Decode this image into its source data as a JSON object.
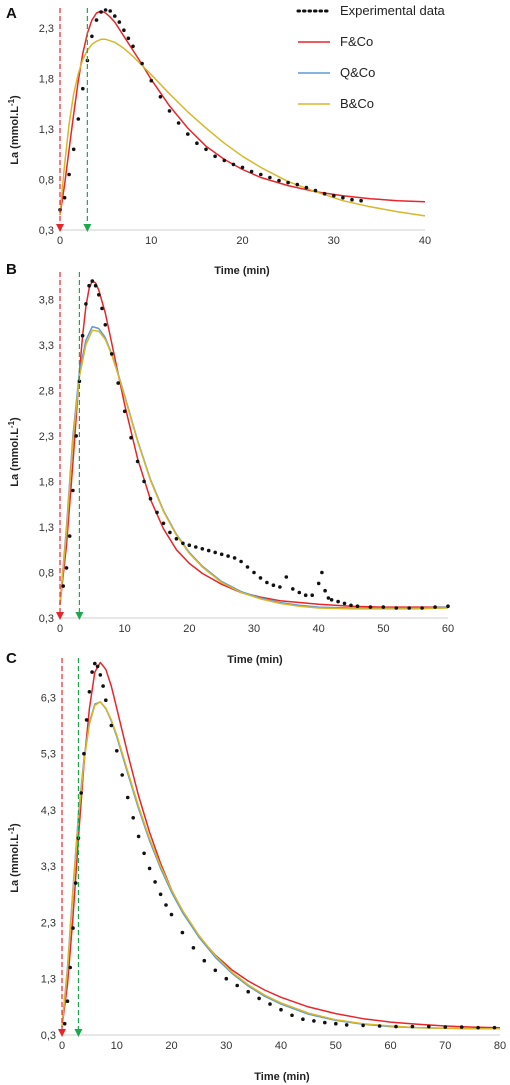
{
  "legend": [
    {
      "label": "Experimental data",
      "color": "#111111",
      "style": "dotted"
    },
    {
      "label": "F&Co",
      "color": "#e8262a",
      "style": "solid"
    },
    {
      "label": "Q&Co",
      "color": "#5b9bd5",
      "style": "solid"
    },
    {
      "label": "B&Co",
      "color": "#d9b62a",
      "style": "solid"
    }
  ],
  "marker_colors": {
    "start": "#e8262a",
    "end": "#1ea84d"
  },
  "chart_data": [
    {
      "type": "line",
      "panel": "A",
      "xlabel": "Time (min)",
      "ylabel": "La (mmol.L-1)",
      "xlim": [
        0,
        40
      ],
      "ylim": [
        0.3,
        2.5
      ],
      "xticks": [
        0,
        10,
        20,
        30,
        40
      ],
      "yticks": [
        0.3,
        0.8,
        1.3,
        1.8,
        2.3
      ],
      "xtick_labels": [
        "0",
        "10",
        "20",
        "30",
        "40"
      ],
      "ytick_labels": [
        "0,3",
        "0,8",
        "1,3",
        "1,8",
        "2,3"
      ],
      "markers": [
        0,
        3
      ],
      "series": [
        {
          "name": "Experimental data",
          "x": [
            0,
            0.5,
            1,
            1.5,
            2,
            2.5,
            3,
            3.5,
            4,
            4.5,
            5,
            5.5,
            6,
            6.5,
            7,
            7.5,
            8,
            9,
            10,
            11,
            12,
            13,
            14,
            15,
            16,
            17,
            18,
            19,
            20,
            21,
            22,
            23,
            24,
            25,
            26,
            27,
            28,
            29,
            30,
            31,
            32,
            33
          ],
          "y": [
            0.5,
            0.62,
            0.85,
            1.1,
            1.4,
            1.7,
            1.98,
            2.22,
            2.38,
            2.46,
            2.48,
            2.47,
            2.42,
            2.36,
            2.28,
            2.2,
            2.12,
            1.95,
            1.78,
            1.62,
            1.48,
            1.36,
            1.25,
            1.16,
            1.1,
            1.03,
            0.99,
            0.95,
            0.92,
            0.88,
            0.85,
            0.82,
            0.79,
            0.77,
            0.75,
            0.72,
            0.69,
            0.66,
            0.64,
            0.62,
            0.6,
            0.59
          ]
        },
        {
          "name": "F&Co",
          "x": [
            0,
            0.5,
            1,
            1.5,
            2,
            2.5,
            3,
            3.5,
            4,
            4.5,
            5,
            5.5,
            6,
            7,
            8,
            9,
            10,
            12,
            14,
            16,
            18,
            20,
            22,
            25,
            28,
            31,
            34,
            37,
            40
          ],
          "y": [
            0.45,
            0.75,
            1.1,
            1.45,
            1.78,
            2.05,
            2.25,
            2.38,
            2.45,
            2.47,
            2.45,
            2.41,
            2.36,
            2.22,
            2.08,
            1.94,
            1.79,
            1.53,
            1.31,
            1.13,
            1.0,
            0.9,
            0.82,
            0.74,
            0.68,
            0.64,
            0.61,
            0.59,
            0.58
          ]
        },
        {
          "name": "B&Co",
          "x": [
            0,
            0.5,
            1,
            1.5,
            2,
            2.5,
            3,
            3.5,
            4,
            4.5,
            5,
            6,
            7,
            8,
            9,
            10,
            12,
            14,
            16,
            18,
            20,
            22,
            25,
            28,
            31,
            34,
            37,
            40
          ],
          "y": [
            0.45,
            0.95,
            1.35,
            1.65,
            1.85,
            1.99,
            2.08,
            2.14,
            2.17,
            2.19,
            2.19,
            2.16,
            2.1,
            2.02,
            1.93,
            1.84,
            1.65,
            1.47,
            1.31,
            1.16,
            1.03,
            0.92,
            0.78,
            0.68,
            0.59,
            0.53,
            0.48,
            0.44
          ]
        }
      ]
    },
    {
      "type": "line",
      "panel": "B",
      "xlabel": "Time (min)",
      "ylabel": "La (mmol.L-1)",
      "xlim": [
        0,
        60
      ],
      "ylim": [
        0.3,
        4.1
      ],
      "xticks": [
        0,
        10,
        20,
        30,
        40,
        50,
        60
      ],
      "yticks": [
        0.3,
        0.8,
        1.3,
        1.8,
        2.3,
        2.8,
        3.3,
        3.8
      ],
      "xtick_labels": [
        "0",
        "10",
        "20",
        "30",
        "40",
        "50",
        "60"
      ],
      "ytick_labels": [
        "0,3",
        "0,8",
        "1,3",
        "1,8",
        "2,3",
        "2,8",
        "3,3",
        "3,8"
      ],
      "markers": [
        0,
        3
      ],
      "series": [
        {
          "name": "Experimental data",
          "x": [
            0.5,
            1,
            1.5,
            2,
            2.5,
            3,
            3.5,
            4,
            4.5,
            5,
            5.5,
            6,
            6.5,
            7,
            8,
            9,
            10,
            11,
            12,
            13,
            14,
            15,
            16,
            17,
            18,
            19,
            20,
            21,
            22,
            23,
            24,
            25,
            26,
            27,
            28,
            29,
            30,
            31,
            32,
            33,
            34,
            35,
            36,
            37,
            38,
            39,
            40,
            40.5,
            41,
            41.5,
            42,
            43,
            44,
            45,
            46,
            48,
            50,
            52,
            54,
            56,
            58,
            60
          ],
          "y": [
            0.65,
            0.85,
            1.2,
            1.7,
            2.3,
            2.9,
            3.4,
            3.75,
            3.95,
            4.0,
            3.95,
            3.85,
            3.7,
            3.52,
            3.2,
            2.88,
            2.57,
            2.28,
            2.02,
            1.8,
            1.61,
            1.46,
            1.34,
            1.24,
            1.17,
            1.12,
            1.1,
            1.08,
            1.06,
            1.04,
            1.02,
            1.0,
            0.98,
            0.96,
            0.92,
            0.86,
            0.8,
            0.74,
            0.69,
            0.66,
            0.64,
            0.75,
            0.62,
            0.58,
            0.55,
            0.55,
            0.68,
            0.8,
            0.6,
            0.52,
            0.5,
            0.48,
            0.46,
            0.44,
            0.43,
            0.42,
            0.42,
            0.41,
            0.41,
            0.41,
            0.42,
            0.43
          ]
        },
        {
          "name": "F&Co",
          "x": [
            0,
            1,
            2,
            3,
            3.5,
            4,
            4.5,
            5,
            5.5,
            6,
            7,
            8,
            9,
            10,
            12,
            14,
            16,
            18,
            20,
            22,
            25,
            28,
            31,
            34,
            37,
            40,
            45,
            50,
            55,
            60
          ],
          "y": [
            0.45,
            1.1,
            2.0,
            3.0,
            3.4,
            3.72,
            3.92,
            4.0,
            3.98,
            3.9,
            3.65,
            3.32,
            2.98,
            2.64,
            2.05,
            1.6,
            1.28,
            1.05,
            0.9,
            0.79,
            0.67,
            0.58,
            0.53,
            0.49,
            0.47,
            0.45,
            0.43,
            0.42,
            0.42,
            0.42
          ]
        },
        {
          "name": "Q&Co",
          "x": [
            0,
            1,
            2,
            3,
            4,
            5,
            6,
            7,
            8,
            9,
            10,
            12,
            14,
            16,
            18,
            20,
            22,
            25,
            28,
            31,
            34,
            37,
            40,
            45,
            50,
            55,
            60
          ],
          "y": [
            0.45,
            1.3,
            2.3,
            3.0,
            3.35,
            3.5,
            3.48,
            3.38,
            3.2,
            2.98,
            2.74,
            2.25,
            1.82,
            1.48,
            1.22,
            1.02,
            0.87,
            0.7,
            0.59,
            0.52,
            0.47,
            0.44,
            0.42,
            0.41,
            0.41,
            0.41,
            0.42
          ]
        },
        {
          "name": "B&Co",
          "x": [
            0,
            1,
            2,
            3,
            4,
            5,
            6,
            7,
            8,
            9,
            10,
            12,
            14,
            16,
            18,
            20,
            22,
            25,
            28,
            31,
            34,
            37,
            40,
            45,
            50,
            55,
            60
          ],
          "y": [
            0.45,
            1.25,
            2.25,
            2.95,
            3.3,
            3.46,
            3.45,
            3.36,
            3.19,
            2.97,
            2.73,
            2.24,
            1.81,
            1.47,
            1.21,
            1.01,
            0.86,
            0.69,
            0.58,
            0.51,
            0.46,
            0.43,
            0.41,
            0.4,
            0.4,
            0.4,
            0.41
          ]
        }
      ]
    },
    {
      "type": "line",
      "panel": "C",
      "xlabel": "Time (min)",
      "ylabel": "La (mmol.L-1)",
      "xlim": [
        0,
        80
      ],
      "ylim": [
        0.3,
        7.0
      ],
      "xticks": [
        0,
        10,
        20,
        30,
        40,
        50,
        60,
        70,
        80
      ],
      "yticks": [
        0.3,
        1.3,
        2.3,
        3.3,
        4.3,
        5.3,
        6.3
      ],
      "xtick_labels": [
        "0",
        "10",
        "20",
        "30",
        "40",
        "50",
        "60",
        "70",
        "80"
      ],
      "ytick_labels": [
        "0,3",
        "1,3",
        "2,3",
        "3,3",
        "4,3",
        "5,3",
        "6,3"
      ],
      "markers": [
        0,
        3
      ],
      "series": [
        {
          "name": "Experimental data",
          "x": [
            0.5,
            1,
            1.5,
            2,
            2.5,
            3,
            3.5,
            4,
            4.5,
            5,
            5.5,
            6,
            6.5,
            7,
            7.5,
            8,
            9,
            10,
            11,
            12,
            13,
            14,
            15,
            16,
            17,
            18,
            19,
            20,
            22,
            24,
            26,
            28,
            30,
            32,
            34,
            36,
            38,
            40,
            42,
            44,
            46,
            48,
            50,
            52,
            55,
            58,
            61,
            64,
            67,
            70,
            73,
            76,
            79
          ],
          "y": [
            0.5,
            0.9,
            1.5,
            2.2,
            3.0,
            3.8,
            4.6,
            5.3,
            5.9,
            6.4,
            6.75,
            6.9,
            6.85,
            6.7,
            6.5,
            6.25,
            5.8,
            5.35,
            4.92,
            4.52,
            4.16,
            3.83,
            3.53,
            3.26,
            3.02,
            2.8,
            2.61,
            2.44,
            2.12,
            1.85,
            1.62,
            1.45,
            1.3,
            1.18,
            1.07,
            0.95,
            0.85,
            0.75,
            0.65,
            0.58,
            0.55,
            0.52,
            0.5,
            0.48,
            0.47,
            0.46,
            0.45,
            0.45,
            0.45,
            0.44,
            0.44,
            0.43,
            0.43
          ]
        },
        {
          "name": "F&Co",
          "x": [
            0,
            1,
            2,
            3,
            4,
            5,
            6,
            7,
            8,
            9,
            10,
            12,
            14,
            16,
            18,
            20,
            22,
            25,
            28,
            31,
            34,
            37,
            40,
            45,
            50,
            55,
            60,
            65,
            70,
            75,
            80
          ],
          "y": [
            0.45,
            1.2,
            2.4,
            3.8,
            5.1,
            6.1,
            6.75,
            6.92,
            6.8,
            6.5,
            6.1,
            5.3,
            4.55,
            3.9,
            3.35,
            2.88,
            2.5,
            2.05,
            1.72,
            1.46,
            1.26,
            1.1,
            0.97,
            0.8,
            0.68,
            0.59,
            0.53,
            0.49,
            0.46,
            0.44,
            0.43
          ]
        },
        {
          "name": "Q&Co",
          "x": [
            0,
            1,
            2,
            3,
            4,
            5,
            6,
            7,
            8,
            9,
            10,
            12,
            14,
            16,
            18,
            20,
            22,
            25,
            28,
            31,
            34,
            37,
            40,
            45,
            50,
            55,
            60,
            65,
            70,
            75,
            80
          ],
          "y": [
            0.45,
            1.5,
            2.9,
            4.2,
            5.2,
            5.85,
            6.18,
            6.22,
            6.1,
            5.88,
            5.6,
            4.95,
            4.32,
            3.75,
            3.26,
            2.84,
            2.48,
            2.04,
            1.68,
            1.4,
            1.17,
            0.99,
            0.85,
            0.67,
            0.56,
            0.49,
            0.45,
            0.43,
            0.42,
            0.41,
            0.41
          ]
        },
        {
          "name": "B&Co",
          "x": [
            0,
            1,
            2,
            3,
            4,
            5,
            6,
            7,
            8,
            9,
            10,
            12,
            14,
            16,
            18,
            20,
            22,
            25,
            28,
            31,
            34,
            37,
            40,
            45,
            50,
            55,
            60,
            65,
            70,
            75,
            80
          ],
          "y": [
            0.45,
            1.45,
            2.85,
            4.15,
            5.15,
            5.82,
            6.16,
            6.22,
            6.11,
            5.9,
            5.63,
            4.99,
            4.36,
            3.79,
            3.3,
            2.88,
            2.52,
            2.07,
            1.71,
            1.42,
            1.19,
            1.01,
            0.87,
            0.69,
            0.57,
            0.5,
            0.46,
            0.43,
            0.42,
            0.41,
            0.41
          ]
        }
      ]
    }
  ]
}
